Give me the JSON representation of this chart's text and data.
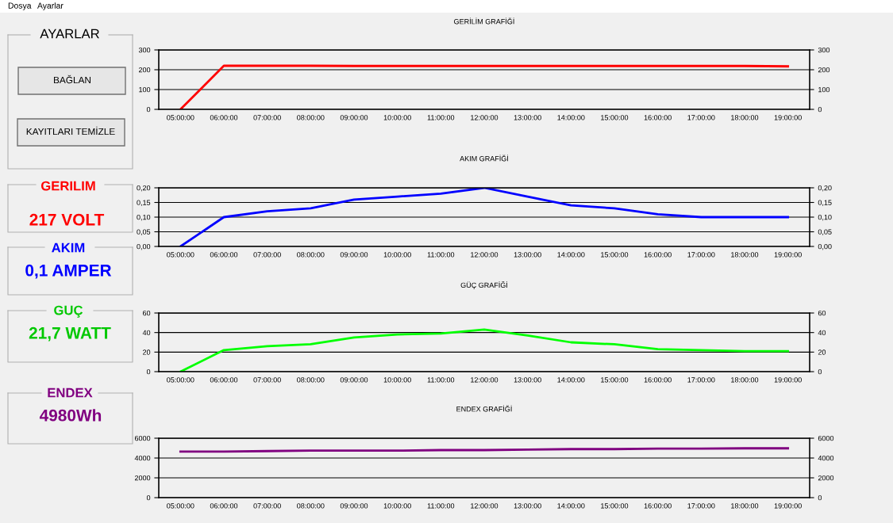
{
  "chart_data": [
    {
      "type": "other",
      "title": "AYARLAR",
      "annotations": [
        "Dosya",
        "Ayarlar",
        "BAĞLAN",
        "KAYITLARI TEMİZLE",
        "GERILIM",
        "217 VOLT",
        "AKIM",
        "0,1 AMPER",
        "GUÇ",
        "21,7 WATT",
        "ENDEX",
        "4980Wh"
      ],
      "colors": [
        "#000000",
        "#000000",
        "#000000",
        "#000000",
        "#ff0000",
        "#ff0000",
        "#0000ff",
        "#0000ff",
        "#00c800",
        "#00c800",
        "#800080",
        "#800080"
      ]
    },
    {
      "type": "line",
      "title": "GERİLİM GRAFİĞİ",
      "categories": [
        "05:00:00",
        "06:00:00",
        "07:00:00",
        "08:00:00",
        "09:00:00",
        "10:00:00",
        "11:00:00",
        "12:00:00",
        "13:00:00",
        "14:00:00",
        "15:00:00",
        "16:00:00",
        "17:00:00",
        "18:00:00",
        "19:00:00"
      ],
      "series": [
        {
          "color": "#ff0000",
          "values": [
            0,
            220,
            220,
            220,
            219,
            219,
            219,
            219,
            219,
            219,
            219,
            219,
            219,
            219,
            217
          ]
        }
      ],
      "ylim": [
        0,
        300
      ],
      "yticks": [
        0,
        100,
        200,
        300
      ],
      "y2lim": [
        0,
        300
      ],
      "y2ticks": [
        0,
        100,
        200,
        300
      ],
      "grid": true,
      "line_style": "solid"
    },
    {
      "type": "line",
      "title": "AKIM GRAFİĞİ",
      "categories": [
        "05:00:00",
        "06:00:00",
        "07:00:00",
        "08:00:00",
        "09:00:00",
        "10:00:00",
        "11:00:00",
        "12:00:00",
        "13:00:00",
        "14:00:00",
        "15:00:00",
        "16:00:00",
        "17:00:00",
        "18:00:00",
        "19:00:00"
      ],
      "series": [
        {
          "color": "#0000ff",
          "values": [
            0,
            0.1,
            0.12,
            0.13,
            0.16,
            0.17,
            0.18,
            0.2,
            0.17,
            0.14,
            0.13,
            0.11,
            0.1,
            0.1,
            0.1
          ]
        }
      ],
      "ylim": [
        0,
        0.2
      ],
      "yticks": [
        {
          "value": 0,
          "label": "0,00"
        },
        {
          "value": 0.05,
          "label": "0,05"
        },
        {
          "value": 0.1,
          "label": "0,10"
        },
        {
          "value": 0.15,
          "label": "0,15"
        },
        {
          "value": 0.2,
          "label": "0,20"
        }
      ],
      "y2lim": [
        0,
        0.2
      ],
      "y2ticks": [
        {
          "value": 0,
          "label": "0,00"
        },
        {
          "value": 0.05,
          "label": "0,05"
        },
        {
          "value": 0.1,
          "label": "0,10"
        },
        {
          "value": 0.15,
          "label": "0,15"
        },
        {
          "value": 0.2,
          "label": "0,20"
        }
      ],
      "grid": true,
      "line_style": "solid"
    },
    {
      "type": "line",
      "title": "GÜÇ GRAFİĞİ",
      "categories": [
        "05:00:00",
        "06:00:00",
        "07:00:00",
        "08:00:00",
        "09:00:00",
        "10:00:00",
        "11:00:00",
        "12:00:00",
        "13:00:00",
        "14:00:00",
        "15:00:00",
        "16:00:00",
        "17:00:00",
        "18:00:00",
        "19:00:00"
      ],
      "series": [
        {
          "color": "#00ff00",
          "values": [
            0,
            22,
            26,
            28,
            35,
            38,
            39,
            43,
            37,
            30,
            28,
            23,
            22,
            21,
            21
          ]
        }
      ],
      "ylim": [
        0,
        60
      ],
      "yticks": [
        0,
        20,
        40,
        60
      ],
      "y2lim": [
        0,
        60
      ],
      "y2ticks": [
        0,
        20,
        40,
        60
      ],
      "grid": true,
      "line_style": "solid"
    },
    {
      "type": "line",
      "title": "ENDEX GRAFİĞİ",
      "categories": [
        "05:00:00",
        "06:00:00",
        "07:00:00",
        "08:00:00",
        "09:00:00",
        "10:00:00",
        "11:00:00",
        "12:00:00",
        "13:00:00",
        "14:00:00",
        "15:00:00",
        "16:00:00",
        "17:00:00",
        "18:00:00",
        "19:00:00"
      ],
      "series": [
        {
          "color": "#800080",
          "values": [
            4650,
            4650,
            4700,
            4750,
            4750,
            4750,
            4800,
            4800,
            4850,
            4900,
            4900,
            4950,
            4950,
            4980,
            4980
          ]
        }
      ],
      "ylim": [
        0,
        6000
      ],
      "yticks": [
        0,
        2000,
        4000,
        6000
      ],
      "y2lim": [
        0,
        6000
      ],
      "y2ticks": [
        0,
        2000,
        4000,
        6000
      ],
      "grid": true,
      "line_style": "solid"
    }
  ]
}
